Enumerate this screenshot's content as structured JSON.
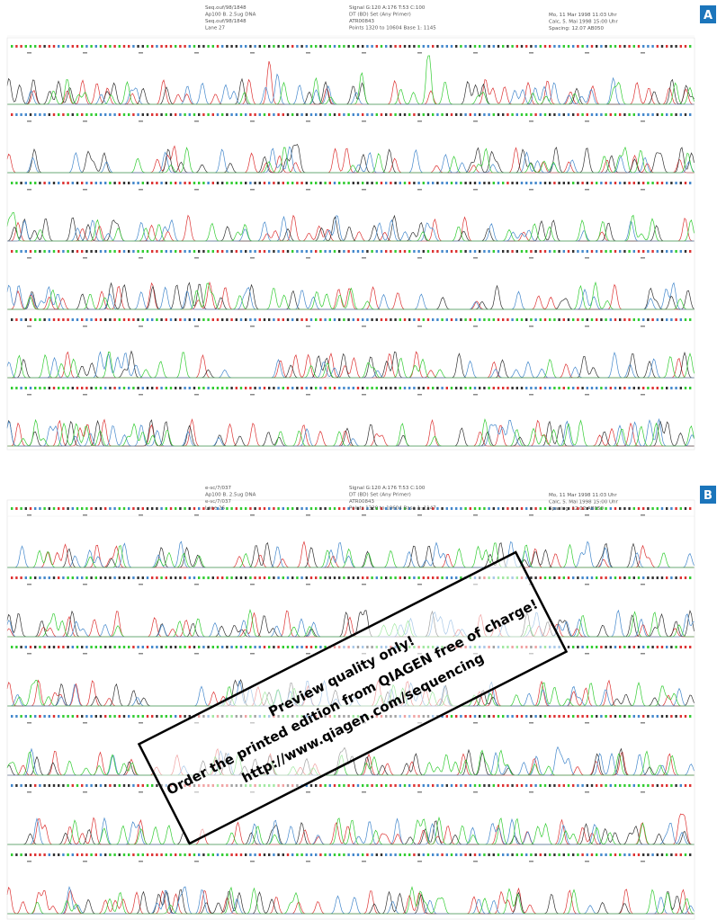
{
  "panels": [
    {
      "label": "A",
      "header": {
        "col1": [
          "Seq.ouf/98/1848",
          "Ap100 B. 2.5ug DNA",
          "Seq.ouf/98/1848",
          "Lane 27"
        ],
        "col2": [
          "Signal G:120 A:176 T:53 C:100",
          "DT (BD) Set (Any Primer)",
          "ATR00843",
          "Points 1320 to 10604   Base 1: 1145"
        ],
        "col3": [
          "Mo, 11 Mar 1998  11:03 Uhr",
          "Calc, 5. Mai 1998  15:00 Uhr",
          "Spacing: 12.07 AB050"
        ]
      }
    },
    {
      "label": "B",
      "header": {
        "col1": [
          "e-sc/7/037",
          "Ap100 B. 2.5ug DNA",
          "e-sc/7/037",
          "Lane 26"
        ],
        "col2": [
          "Signal G:120 A:176 T:53 C:100",
          "DT (BD) Set (Any Primer)",
          "ATR00843",
          "Points 1320 to 10604   Base 1: 1147"
        ],
        "col3": [
          "Mo, 11 Mar 1998  11:03 Uhr",
          "Calc, 5. Mai 1998  15:00 Uhr",
          "Spacing: 12.02 AB050"
        ]
      }
    }
  ],
  "watermark": {
    "lines": [
      "Preview quality only!",
      "Order the printed edition from QIAGEN free of charge!",
      "http://www.qiagen.com/sequencing"
    ]
  }
}
